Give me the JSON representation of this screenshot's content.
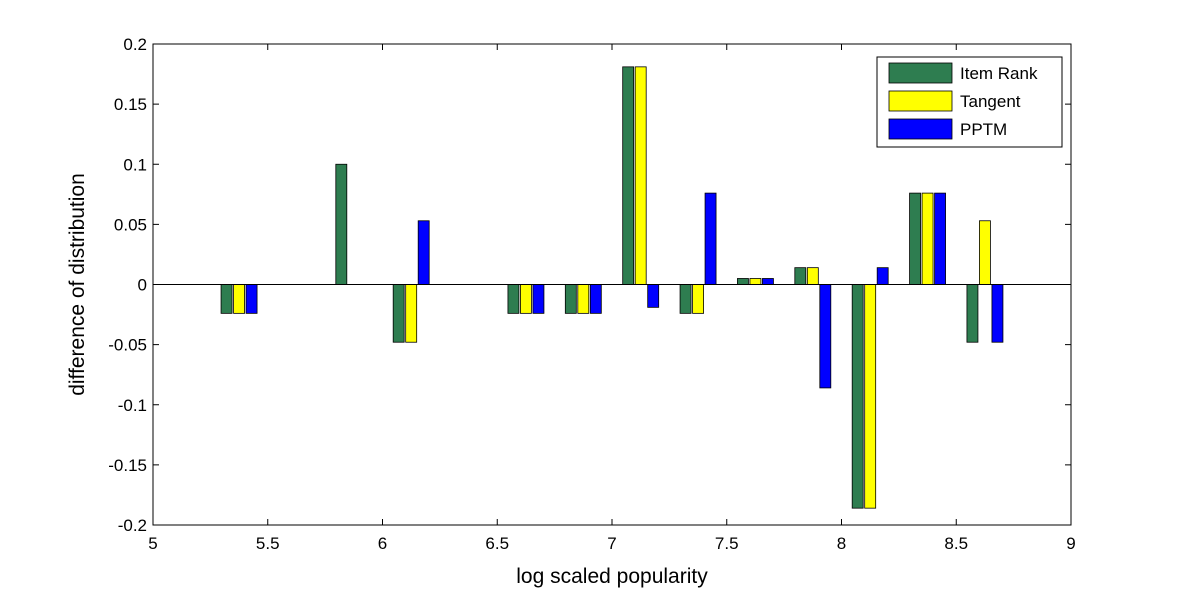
{
  "chart_data": {
    "type": "bar",
    "title": "",
    "xlabel": "log scaled popularity",
    "ylabel": "difference of distribution",
    "xlim": [
      5,
      9
    ],
    "ylim": [
      -0.2,
      0.2
    ],
    "xticks": [
      "5",
      "5.5",
      "6",
      "6.5",
      "7",
      "7.5",
      "8",
      "8.5",
      "9"
    ],
    "xtick_values": [
      5,
      5.5,
      6,
      6.5,
      7,
      7.5,
      8,
      8.5,
      9
    ],
    "yticks": [
      "-0.2",
      "-0.15",
      "-0.1",
      "-0.05",
      "0",
      "0.05",
      "0.1",
      "0.15",
      "0.2"
    ],
    "ytick_values": [
      -0.2,
      -0.15,
      -0.1,
      -0.05,
      0,
      0.05,
      0.1,
      0.15,
      0.2
    ],
    "grid": false,
    "legend_position": "top-right",
    "x": [
      5.375,
      5.875,
      6.125,
      6.625,
      6.875,
      7.125,
      7.375,
      7.625,
      7.875,
      8.125,
      8.375,
      8.625
    ],
    "series": [
      {
        "name": "Item Rank",
        "color": "#2e7d50",
        "values": [
          -0.024,
          0.1,
          -0.048,
          -0.024,
          -0.024,
          0.181,
          -0.024,
          0.005,
          0.014,
          -0.186,
          0.076,
          -0.048
        ]
      },
      {
        "name": "Tangent",
        "color": "#ffff00",
        "values": [
          -0.024,
          0,
          -0.048,
          -0.024,
          -0.024,
          0.181,
          -0.024,
          0.005,
          0.014,
          -0.186,
          0.076,
          0.053
        ]
      },
      {
        "name": "PPTM",
        "color": "#0000ff",
        "values": [
          -0.024,
          0,
          0.053,
          -0.024,
          -0.024,
          -0.019,
          0.076,
          0.005,
          -0.086,
          0.014,
          0.076,
          -0.048
        ]
      }
    ]
  }
}
